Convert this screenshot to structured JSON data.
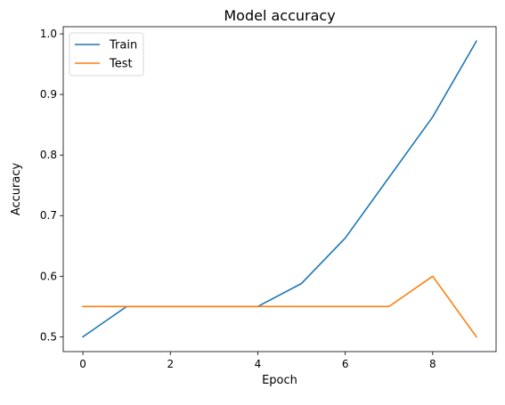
{
  "chart_data": {
    "type": "line",
    "title": "Model accuracy",
    "xlabel": "Epoch",
    "ylabel": "Accuracy",
    "xlim": [
      -0.45,
      9.45
    ],
    "ylim": [
      0.4756,
      1.0118
    ],
    "xticks": [
      0,
      2,
      4,
      6,
      8
    ],
    "yticks": [
      0.5,
      0.6,
      0.7,
      0.8,
      0.9,
      1.0
    ],
    "grid": false,
    "legend_position": "top-left",
    "x": [
      0,
      1,
      2,
      3,
      4,
      5,
      6,
      7,
      8,
      9
    ],
    "series": [
      {
        "name": "Train",
        "color": "#1f77b4",
        "values": [
          0.5,
          0.55,
          0.55,
          0.55,
          0.55,
          0.588,
          0.663,
          0.763,
          0.863,
          0.988
        ]
      },
      {
        "name": "Test",
        "color": "#ff7f0e",
        "values": [
          0.55,
          0.55,
          0.55,
          0.55,
          0.55,
          0.55,
          0.55,
          0.55,
          0.6,
          0.5
        ]
      }
    ]
  }
}
